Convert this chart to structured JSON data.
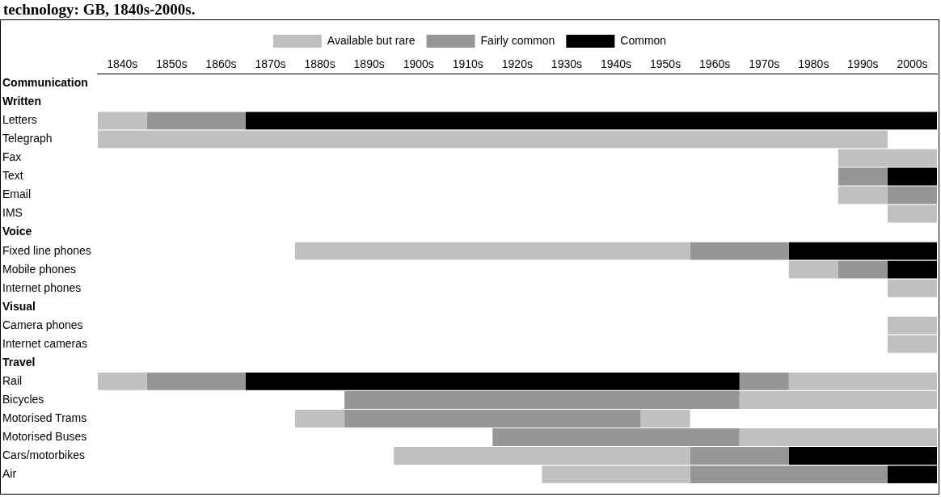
{
  "chart_data": {
    "type": "bar",
    "orientation": "horizontal",
    "title": "technology: GB, 1840s-2000s.",
    "categories": [
      "Communication",
      "Written",
      "Letters",
      "Telegraph",
      "Fax",
      "Text",
      "Email",
      "IMS",
      "Voice",
      "Fixed line phones",
      "Mobile phones",
      "Internet phones",
      "Visual",
      "Camera phones",
      "Internet cameras",
      "Travel",
      "Rail",
      "Bicycles",
      "Motorised Trams",
      "Motorised Buses",
      "Cars/motorbikes",
      "Air"
    ],
    "series": [
      {
        "name": "Available but rare",
        "color": "#c0c0c0",
        "base": [
          null,
          null,
          1835,
          1835,
          1985,
          null,
          1985,
          1995,
          null,
          1875,
          1975,
          1995,
          null,
          1995,
          1995,
          null,
          1835,
          null,
          1875,
          null,
          1895,
          1925
        ],
        "values": [
          null,
          null,
          10,
          160,
          20,
          null,
          10,
          10,
          null,
          80,
          10,
          10,
          null,
          10,
          10,
          null,
          10,
          null,
          10,
          null,
          60,
          30
        ]
      },
      {
        "name": "Fairly common",
        "color": "#969696",
        "base": [
          null,
          null,
          1845,
          null,
          null,
          1985,
          1995,
          null,
          null,
          1955,
          1985,
          null,
          null,
          null,
          null,
          null,
          1845,
          1885,
          1885,
          1915,
          1955,
          1955
        ],
        "values": [
          null,
          null,
          20,
          null,
          null,
          10,
          10,
          null,
          null,
          20,
          10,
          null,
          null,
          null,
          null,
          null,
          20,
          80,
          60,
          50,
          20,
          40
        ]
      },
      {
        "name": "Common",
        "color": "#000000",
        "base": [
          null,
          null,
          1865,
          null,
          null,
          1995,
          null,
          null,
          null,
          1975,
          1995,
          null,
          null,
          null,
          null,
          null,
          1865,
          null,
          null,
          null,
          1975,
          1995
        ],
        "values": [
          null,
          null,
          140,
          null,
          null,
          10,
          null,
          null,
          null,
          30,
          10,
          null,
          null,
          null,
          null,
          null,
          100,
          null,
          null,
          null,
          30,
          10
        ]
      },
      {
        "color": "#969696",
        "base": [
          null,
          null,
          null,
          null,
          null,
          null,
          null,
          null,
          null,
          null,
          null,
          null,
          null,
          null,
          null,
          null,
          1965,
          null,
          null,
          null,
          null,
          null
        ],
        "values": [
          null,
          null,
          null,
          null,
          null,
          null,
          null,
          null,
          null,
          null,
          null,
          null,
          null,
          null,
          null,
          null,
          10,
          null,
          null,
          null,
          null,
          null
        ]
      },
      {
        "color": "#c0c0c0",
        "base": [
          null,
          null,
          null,
          null,
          null,
          null,
          null,
          null,
          null,
          null,
          null,
          null,
          null,
          null,
          null,
          null,
          1975,
          1965,
          1945,
          1965,
          null,
          null
        ],
        "values": [
          null,
          null,
          null,
          null,
          null,
          null,
          null,
          null,
          null,
          null,
          null,
          null,
          null,
          null,
          null,
          null,
          30,
          40,
          10,
          40,
          null,
          null
        ]
      }
    ],
    "xlim": [
      1835,
      2005
    ],
    "xticks": [
      {
        "value": 1840,
        "label": "1840s"
      },
      {
        "value": 1850,
        "label": "1850s"
      },
      {
        "value": 1860,
        "label": "1860s"
      },
      {
        "value": 1870,
        "label": "1870s"
      },
      {
        "value": 1880,
        "label": "1880s"
      },
      {
        "value": 1890,
        "label": "1890s"
      },
      {
        "value": 1900,
        "label": "1900s"
      },
      {
        "value": 1910,
        "label": "1910s"
      },
      {
        "value": 1920,
        "label": "1920s"
      },
      {
        "value": 1930,
        "label": "1930s"
      },
      {
        "value": 1940,
        "label": "1940s"
      },
      {
        "value": 1950,
        "label": "1950s"
      },
      {
        "value": 1960,
        "label": "1960s"
      },
      {
        "value": 1970,
        "label": "1970s"
      },
      {
        "value": 1980,
        "label": "1980s"
      },
      {
        "value": 1990,
        "label": "1990s"
      },
      {
        "value": 2000,
        "label": "2000s"
      }
    ],
    "legend": "top",
    "grid": false
  }
}
